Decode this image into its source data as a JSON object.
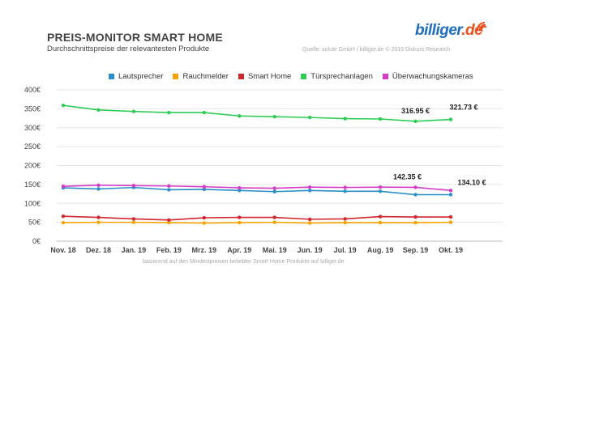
{
  "header": {
    "title": "PREIS-MONITOR SMART HOME",
    "subtitle": "Durchschnittspreise der relevantesten Produkte",
    "source": "Quelle: solute GmbH / billiger.de © 2019 Diskurs Research",
    "logo_text": "billiger",
    "logo_suffix": ".de"
  },
  "footnote": "basierend auf den Mindestpreisen beliebter Smart Home Produkte auf billiger.de",
  "chart_data": {
    "type": "line",
    "title": "PREIS-MONITOR SMART HOME",
    "subtitle": "Durchschnittspreise der relevantesten Produkte",
    "categories": [
      "Nov. 18",
      "Dez. 18",
      "Jan. 19",
      "Feb. 19",
      "Mrz. 19",
      "Apr. 19",
      "Mai. 19",
      "Jun. 19",
      "Jul. 19",
      "Aug. 19",
      "Sep. 19",
      "Okt. 19"
    ],
    "y_ticks": [
      "0€",
      "50€",
      "100€",
      "150€",
      "200€",
      "250€",
      "300€",
      "350€",
      "400€"
    ],
    "ylim": [
      0,
      400
    ],
    "grid": true,
    "legend_position": "top",
    "series": [
      {
        "name": "Lautsprecher",
        "color": "#2a8fc7",
        "values": [
          141,
          138,
          142,
          136,
          137,
          134,
          131,
          134,
          132,
          132,
          123,
          123
        ]
      },
      {
        "name": "Rauchmelder",
        "color": "#f5a300",
        "values": [
          49,
          50,
          50,
          49,
          48,
          49,
          50,
          48,
          49,
          49,
          49,
          50
        ]
      },
      {
        "name": "Smart Home",
        "color": "#d0262e",
        "values": [
          66,
          63,
          59,
          56,
          62,
          63,
          63,
          58,
          59,
          65,
          64,
          64
        ]
      },
      {
        "name": "Türsprechanlagen",
        "color": "#2ecc55",
        "values": [
          359,
          347,
          343,
          340,
          340,
          331,
          329,
          327,
          324,
          323,
          316.95,
          321.73
        ]
      },
      {
        "name": "Überwachungskameras",
        "color": "#d63bc6",
        "values": [
          145,
          148,
          147,
          146,
          144,
          141,
          140,
          143,
          142,
          143,
          142.35,
          134.1
        ]
      }
    ],
    "annotations": [
      {
        "series": "Türsprechanlagen",
        "category": "Sep. 19",
        "text": "316.95 €"
      },
      {
        "series": "Türsprechanlagen",
        "category": "Okt. 19",
        "text": "321.73 €"
      },
      {
        "series": "Überwachungskameras",
        "category": "Sep. 19",
        "text": "142.35 €"
      },
      {
        "series": "Überwachungskameras",
        "category": "Okt. 19",
        "text": "134.10 €"
      }
    ]
  }
}
